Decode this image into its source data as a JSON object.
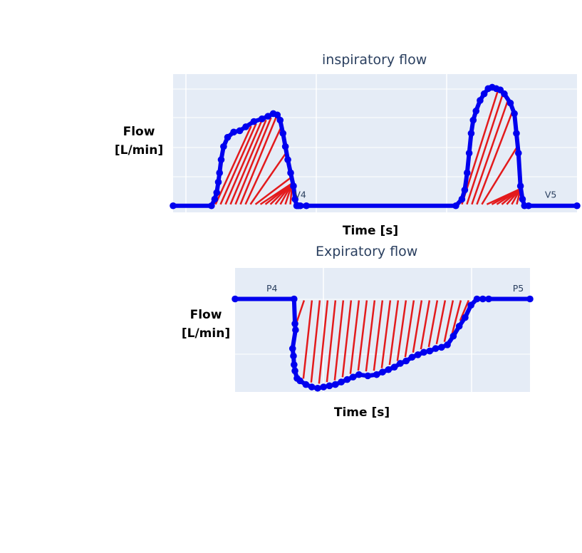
{
  "chart_data": [
    {
      "type": "scatter",
      "title": "inspiratory flow",
      "xlabel": "Time [s]",
      "ylabel": "Flow [L/min]",
      "xlim": [
        0,
        100
      ],
      "ylim": [
        -5,
        100
      ],
      "grid": true,
      "legend": "none",
      "colors": {
        "series": "#0000ee",
        "hatch": "#e31a1c",
        "plot_bg": "#e5ecf6",
        "grid": "#ffffff"
      },
      "series": [
        {
          "x": [
            0,
            9.5,
            10.3,
            10.8,
            11.2,
            11.5,
            11.9,
            12.5,
            13.5,
            15,
            16.5,
            18,
            20,
            22,
            23.5,
            24.8,
            25.8,
            26.5,
            27.2,
            27.8,
            28.4,
            29.1,
            29.8,
            30.2,
            30.6,
            31,
            31.5,
            33,
            70,
            71.5,
            72.2,
            72.8,
            73.3,
            73.8,
            74.3,
            75,
            76,
            77,
            78,
            79,
            80,
            81,
            82,
            83.5,
            84.5,
            85,
            85.5,
            86,
            86.5,
            87,
            88,
            100
          ],
          "y": [
            0,
            0,
            5,
            10,
            18,
            25,
            35,
            45,
            52,
            56,
            57,
            60,
            64,
            66,
            68,
            70,
            69,
            65,
            55,
            45,
            35,
            25,
            15,
            5,
            0,
            0,
            0,
            0,
            0,
            5,
            12,
            25,
            40,
            55,
            65,
            72,
            80,
            85,
            89,
            90,
            89,
            88,
            85,
            78,
            70,
            55,
            40,
            15,
            5,
            0,
            0,
            0
          ]
        }
      ],
      "annotations": [
        {
          "text": "V4",
          "x": 31.5,
          "y": 6
        },
        {
          "text": "V5",
          "x": 93.5,
          "y": 6
        }
      ],
      "shaded_regions": [
        [
          10.5,
          29.5
        ],
        [
          71.5,
          86
        ]
      ]
    },
    {
      "type": "scatter",
      "title": "Expiratory flow",
      "xlabel": "Time [s]",
      "ylabel": "Flow [L/min]",
      "xlim": [
        0,
        100
      ],
      "ylim": [
        -75,
        25
      ],
      "grid": true,
      "legend": "none",
      "colors": {
        "series": "#0000ee",
        "hatch": "#e31a1c",
        "plot_bg": "#e5ecf6",
        "grid": "#ffffff"
      },
      "series": [
        {
          "x": [
            0,
            20,
            20.3,
            20.5,
            19.5,
            19.8,
            20,
            20.3,
            21,
            22,
            24,
            26,
            28,
            30,
            32,
            34,
            36,
            38,
            40,
            42,
            45,
            48,
            50,
            52,
            54,
            56,
            58,
            60,
            62,
            64,
            66,
            68,
            70,
            72,
            74,
            76,
            78,
            80,
            82,
            84,
            86,
            100
          ],
          "y": [
            0,
            0,
            -20,
            -25,
            -40,
            -46,
            -53,
            -58,
            -64,
            -66,
            -69,
            -71,
            -72,
            -71,
            -70,
            -69,
            -67,
            -65,
            -63,
            -61,
            -62,
            -61,
            -59,
            -57,
            -55,
            -52,
            -50,
            -47,
            -45,
            -43,
            -42,
            -40,
            -39,
            -37,
            -30,
            -22,
            -15,
            -5,
            0,
            0,
            0,
            0
          ]
        }
      ],
      "annotations": [
        {
          "text": "P4",
          "x": 12.5,
          "y": 6
        },
        {
          "text": "P5",
          "x": 96,
          "y": 6
        }
      ],
      "shaded_regions": [
        [
          20.5,
          82
        ]
      ]
    }
  ]
}
